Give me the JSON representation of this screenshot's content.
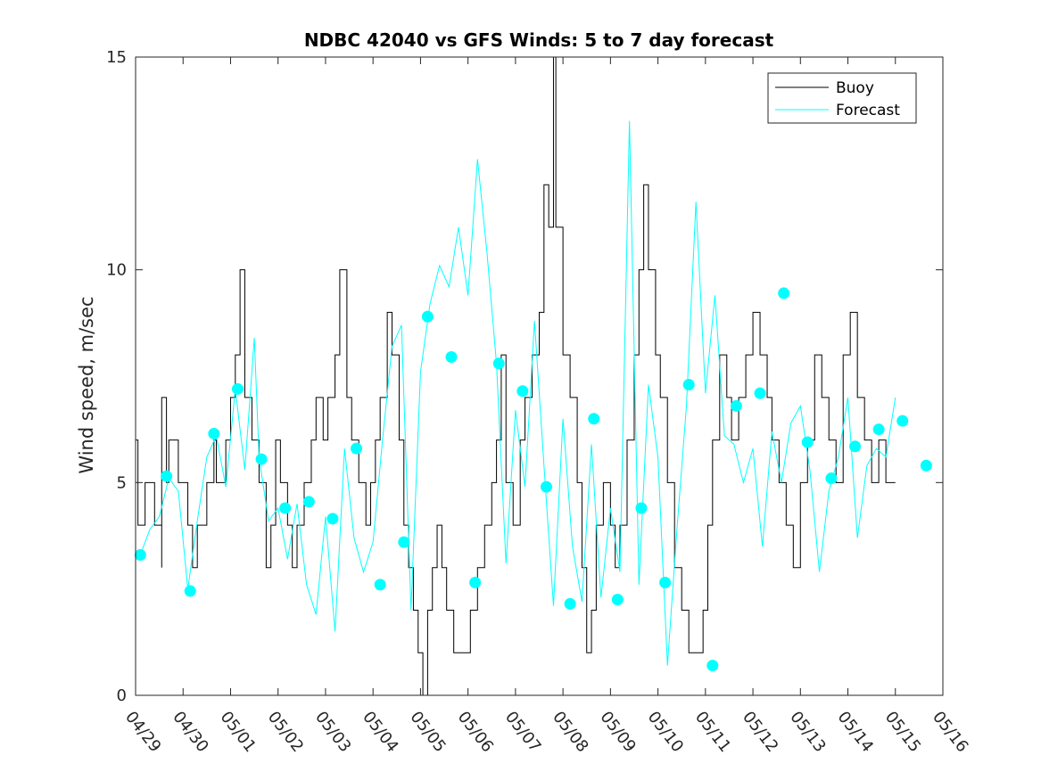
{
  "chart_data": {
    "type": "line",
    "title": "NDBC 42040 vs GFS Winds: 5 to 7 day forecast",
    "xlabel": "",
    "ylabel": "Wind speed, m/sec",
    "ylim": [
      0,
      15
    ],
    "yticks": [
      "0",
      "5",
      "10",
      "15"
    ],
    "xlim": [
      "04/29",
      "05/16"
    ],
    "xticks": [
      "04/29",
      "04/30",
      "05/01",
      "05/02",
      "05/03",
      "05/04",
      "05/05",
      "05/06",
      "05/07",
      "05/08",
      "05/09",
      "05/10",
      "05/11",
      "05/12",
      "05/13",
      "05/14",
      "05/15",
      "05/16"
    ],
    "grid": false,
    "legend": {
      "placement": "top-right",
      "entries": [
        "Buoy",
        "Forecast"
      ]
    },
    "colors": {
      "buoy": "#000000",
      "forecast": "#00ffff"
    },
    "series": [
      {
        "name": "Buoy",
        "style": "step",
        "points": [
          [
            0.0,
            6
          ],
          [
            0.05,
            4
          ],
          [
            0.2,
            5
          ],
          [
            0.4,
            4
          ],
          [
            0.55,
            3
          ],
          [
            0.65,
            5
          ],
          [
            0.55,
            6
          ],
          [
            0.55,
            7
          ],
          [
            0.7,
            6
          ],
          [
            0.9,
            5
          ],
          [
            1.0,
            5
          ],
          [
            1.1,
            4
          ],
          [
            1.2,
            3
          ],
          [
            1.3,
            4
          ],
          [
            1.5,
            5
          ],
          [
            1.65,
            6
          ],
          [
            1.7,
            5
          ],
          [
            1.9,
            6
          ],
          [
            2.0,
            7
          ],
          [
            2.1,
            8
          ],
          [
            2.2,
            10
          ],
          [
            2.3,
            7
          ],
          [
            2.45,
            6
          ],
          [
            2.6,
            5
          ],
          [
            2.75,
            3
          ],
          [
            2.85,
            4
          ],
          [
            2.95,
            6
          ],
          [
            3.05,
            5
          ],
          [
            3.2,
            4
          ],
          [
            3.3,
            3
          ],
          [
            3.4,
            4
          ],
          [
            3.55,
            5
          ],
          [
            3.7,
            6
          ],
          [
            3.8,
            7
          ],
          [
            3.95,
            6
          ],
          [
            4.05,
            7
          ],
          [
            4.2,
            8
          ],
          [
            4.3,
            10
          ],
          [
            4.45,
            7
          ],
          [
            4.55,
            6
          ],
          [
            4.7,
            5
          ],
          [
            4.85,
            4
          ],
          [
            4.95,
            5
          ],
          [
            5.05,
            6
          ],
          [
            5.15,
            7
          ],
          [
            5.3,
            9
          ],
          [
            5.4,
            8
          ],
          [
            5.55,
            6
          ],
          [
            5.65,
            4
          ],
          [
            5.75,
            3
          ],
          [
            5.85,
            2
          ],
          [
            5.95,
            1
          ],
          [
            6.05,
            0
          ],
          [
            6.15,
            2
          ],
          [
            6.25,
            3
          ],
          [
            6.35,
            4
          ],
          [
            6.45,
            3
          ],
          [
            6.55,
            2
          ],
          [
            6.7,
            1
          ],
          [
            6.9,
            1
          ],
          [
            7.05,
            2
          ],
          [
            7.2,
            3
          ],
          [
            7.35,
            4
          ],
          [
            7.5,
            5
          ],
          [
            7.6,
            6
          ],
          [
            7.7,
            8
          ],
          [
            7.8,
            5
          ],
          [
            7.95,
            4
          ],
          [
            8.1,
            6
          ],
          [
            8.2,
            7
          ],
          [
            8.35,
            8
          ],
          [
            8.5,
            9
          ],
          [
            8.6,
            12
          ],
          [
            8.7,
            11
          ],
          [
            8.8,
            15
          ],
          [
            8.85,
            11
          ],
          [
            9.0,
            8
          ],
          [
            9.15,
            7
          ],
          [
            9.3,
            5
          ],
          [
            9.4,
            3
          ],
          [
            9.5,
            1
          ],
          [
            9.6,
            2
          ],
          [
            9.7,
            4
          ],
          [
            9.85,
            5
          ],
          [
            10.0,
            4
          ],
          [
            10.1,
            3
          ],
          [
            10.2,
            4
          ],
          [
            10.35,
            6
          ],
          [
            10.5,
            8
          ],
          [
            10.6,
            10
          ],
          [
            10.7,
            12
          ],
          [
            10.8,
            10
          ],
          [
            10.95,
            8
          ],
          [
            11.05,
            7
          ],
          [
            11.2,
            5
          ],
          [
            11.35,
            3
          ],
          [
            11.5,
            2
          ],
          [
            11.65,
            1
          ],
          [
            11.8,
            1
          ],
          [
            11.95,
            2
          ],
          [
            12.05,
            4
          ],
          [
            12.15,
            6
          ],
          [
            12.3,
            8
          ],
          [
            12.45,
            7
          ],
          [
            12.55,
            6
          ],
          [
            12.7,
            7
          ],
          [
            12.85,
            8
          ],
          [
            13.0,
            9
          ],
          [
            13.15,
            8
          ],
          [
            13.3,
            7
          ],
          [
            13.4,
            6
          ],
          [
            13.55,
            5
          ],
          [
            13.7,
            4
          ],
          [
            13.85,
            3
          ],
          [
            14.0,
            5
          ],
          [
            14.15,
            6
          ],
          [
            14.3,
            8
          ],
          [
            14.45,
            7
          ],
          [
            14.6,
            6
          ],
          [
            14.75,
            5
          ],
          [
            14.9,
            8
          ],
          [
            15.05,
            9
          ],
          [
            15.2,
            7
          ],
          [
            15.35,
            6
          ],
          [
            15.5,
            5
          ],
          [
            15.65,
            6
          ],
          [
            15.8,
            5
          ],
          [
            16.0,
            5
          ]
        ]
      },
      {
        "name": "Forecast",
        "style": "line",
        "points": [
          [
            0.1,
            3.3
          ],
          [
            0.3,
            3.9
          ],
          [
            0.5,
            4.2
          ],
          [
            0.7,
            5.1
          ],
          [
            0.9,
            4.8
          ],
          [
            1.1,
            2.5
          ],
          [
            1.3,
            4.1
          ],
          [
            1.5,
            5.6
          ],
          [
            1.7,
            6.1
          ],
          [
            1.9,
            4.9
          ],
          [
            2.1,
            7.2
          ],
          [
            2.3,
            5.3
          ],
          [
            2.5,
            8.4
          ],
          [
            2.6,
            5.6
          ],
          [
            2.8,
            4.1
          ],
          [
            3.0,
            4.4
          ],
          [
            3.2,
            3.2
          ],
          [
            3.4,
            4.5
          ],
          [
            3.6,
            2.6
          ],
          [
            3.8,
            1.9
          ],
          [
            4.0,
            4.2
          ],
          [
            4.2,
            1.5
          ],
          [
            4.4,
            5.8
          ],
          [
            4.6,
            3.7
          ],
          [
            4.8,
            2.9
          ],
          [
            5.0,
            3.6
          ],
          [
            5.2,
            6.0
          ],
          [
            5.4,
            8.2
          ],
          [
            5.6,
            8.7
          ],
          [
            5.8,
            2.0
          ],
          [
            6.0,
            7.6
          ],
          [
            6.2,
            9.2
          ],
          [
            6.4,
            10.1
          ],
          [
            6.6,
            9.6
          ],
          [
            6.8,
            11.0
          ],
          [
            7.0,
            9.4
          ],
          [
            7.2,
            12.6
          ],
          [
            7.4,
            10.4
          ],
          [
            7.6,
            7.8
          ],
          [
            7.8,
            3.1
          ],
          [
            8.0,
            6.7
          ],
          [
            8.2,
            4.9
          ],
          [
            8.4,
            8.8
          ],
          [
            8.6,
            5.4
          ],
          [
            8.8,
            2.1
          ],
          [
            9.0,
            6.5
          ],
          [
            9.2,
            3.5
          ],
          [
            9.4,
            2.2
          ],
          [
            9.6,
            5.9
          ],
          [
            9.8,
            2.3
          ],
          [
            10.0,
            4.4
          ],
          [
            10.2,
            2.9
          ],
          [
            10.4,
            13.5
          ],
          [
            10.6,
            2.6
          ],
          [
            10.8,
            7.3
          ],
          [
            11.0,
            5.6
          ],
          [
            11.2,
            0.7
          ],
          [
            11.4,
            3.9
          ],
          [
            11.6,
            6.8
          ],
          [
            11.8,
            11.6
          ],
          [
            12.0,
            7.1
          ],
          [
            12.2,
            9.4
          ],
          [
            12.4,
            6.1
          ],
          [
            12.6,
            5.9
          ],
          [
            12.8,
            5.0
          ],
          [
            13.0,
            5.8
          ],
          [
            13.2,
            3.5
          ],
          [
            13.4,
            6.2
          ],
          [
            13.6,
            5.0
          ],
          [
            13.8,
            6.4
          ],
          [
            14.0,
            6.8
          ],
          [
            14.2,
            5.3
          ],
          [
            14.4,
            2.9
          ],
          [
            14.6,
            4.8
          ],
          [
            14.8,
            5.6
          ],
          [
            15.0,
            7.0
          ],
          [
            15.2,
            3.7
          ],
          [
            15.4,
            5.4
          ],
          [
            15.6,
            5.8
          ],
          [
            15.8,
            5.6
          ],
          [
            16.0,
            7.0
          ]
        ],
        "markers": [
          [
            0.1,
            3.3
          ],
          [
            0.65,
            5.15
          ],
          [
            1.15,
            2.45
          ],
          [
            1.65,
            6.15
          ],
          [
            2.15,
            7.2
          ],
          [
            2.65,
            5.55
          ],
          [
            3.15,
            4.4
          ],
          [
            3.65,
            4.55
          ],
          [
            4.15,
            4.15
          ],
          [
            4.65,
            5.8
          ],
          [
            5.15,
            2.6
          ],
          [
            5.65,
            3.6
          ],
          [
            6.15,
            8.9
          ],
          [
            6.65,
            7.95
          ],
          [
            7.15,
            2.65
          ],
          [
            7.65,
            7.8
          ],
          [
            8.15,
            7.15
          ],
          [
            8.65,
            4.9
          ],
          [
            9.15,
            2.15
          ],
          [
            9.65,
            6.5
          ],
          [
            10.15,
            2.25
          ],
          [
            10.65,
            4.4
          ],
          [
            11.15,
            2.65
          ],
          [
            11.65,
            7.3
          ],
          [
            12.15,
            0.7
          ],
          [
            12.65,
            6.8
          ],
          [
            13.15,
            7.1
          ],
          [
            13.65,
            9.45
          ],
          [
            14.15,
            5.95
          ],
          [
            14.65,
            5.1
          ],
          [
            15.15,
            5.85
          ],
          [
            15.65,
            6.25
          ],
          [
            16.15,
            6.45
          ],
          [
            16.65,
            5.4
          ]
        ]
      }
    ]
  }
}
